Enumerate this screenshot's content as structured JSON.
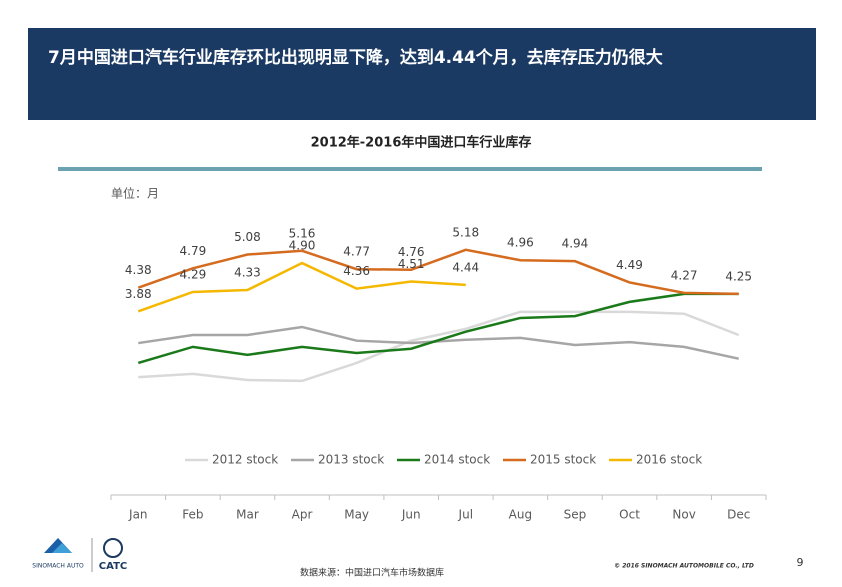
{
  "slide": {
    "headline": "7月中国进口汽车行业库存环比出现明显下降，达到4.44个月，去库存压力仍很大",
    "unit": "单位：月",
    "source": "数据来源：中国进口汽车市场数据库",
    "copyright": "© 2016 SINOMACH AUTOMOBILE CO., LTD",
    "page": "9",
    "logo_left": "SINOMACH AUTO",
    "logo_right": "CATC"
  },
  "chart_data": {
    "type": "line",
    "title": "2012年-2016年中国进口车行业库存",
    "categories": [
      "Jan",
      "Feb",
      "Mar",
      "Apr",
      "May",
      "Jun",
      "Jul",
      "Aug",
      "Sep",
      "Oct",
      "Nov",
      "Dec"
    ],
    "ylim": [
      0,
      6
    ],
    "legend": "bottom",
    "series": [
      {
        "name": "2012 stock",
        "color": "#d9d9d9",
        "values": [
          2.49,
          2.56,
          2.43,
          2.41,
          2.79,
          3.26,
          3.51,
          3.87,
          3.87,
          3.87,
          3.83,
          3.38
        ]
      },
      {
        "name": "2013 stock",
        "color": "#a6a6a6",
        "values": [
          3.21,
          3.38,
          3.38,
          3.55,
          3.26,
          3.21,
          3.28,
          3.32,
          3.17,
          3.23,
          3.13,
          2.88
        ]
      },
      {
        "name": "2014 stock",
        "color": "#1a7a1a",
        "values": [
          2.79,
          3.13,
          2.96,
          3.13,
          3.0,
          3.09,
          3.45,
          3.74,
          3.78,
          4.08,
          4.25,
          4.25
        ]
      },
      {
        "name": "2015 stock",
        "color": "#d46b1f",
        "values": [
          4.38,
          4.79,
          5.08,
          5.16,
          4.77,
          4.76,
          5.18,
          4.96,
          4.94,
          4.49,
          4.27,
          4.25
        ],
        "value_labels": [
          "4.38",
          "4.79",
          "5.08",
          "5.16",
          "4.77",
          "4.76",
          "5.18",
          "4.96",
          "4.94",
          "4.49",
          "4.27",
          "4.25"
        ]
      },
      {
        "name": "2016 stock",
        "color": "#f5b800",
        "values": [
          3.88,
          4.29,
          4.33,
          4.9,
          4.36,
          4.51,
          4.44,
          null,
          null,
          null,
          null,
          null
        ],
        "value_labels": [
          "3.88",
          "4.29",
          "4.33",
          "4.90",
          "4.36",
          "4.51",
          "4.44",
          null,
          null,
          null,
          null,
          null
        ]
      }
    ]
  }
}
